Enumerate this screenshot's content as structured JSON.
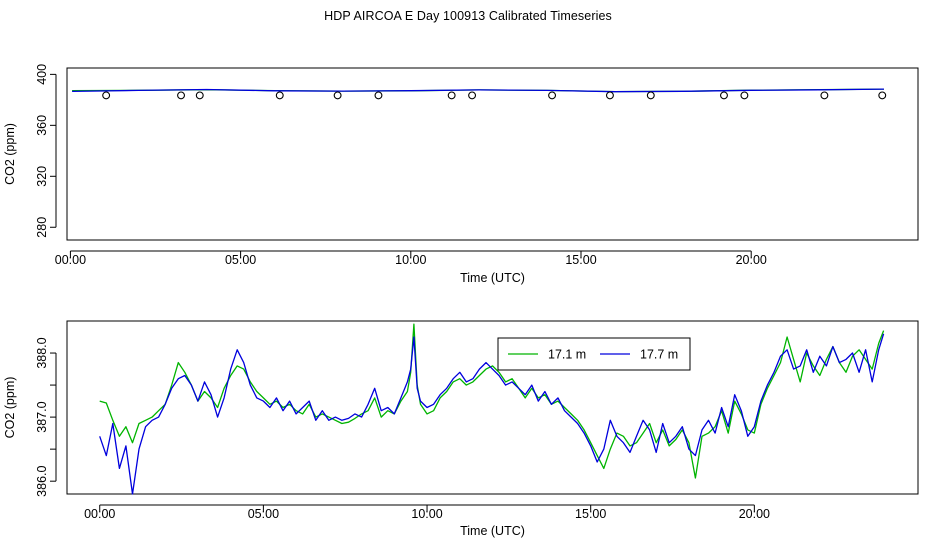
{
  "title": "HDP AIRCOA E  Day 100913  Calibrated Timeseries",
  "colors": {
    "green": "#00b400",
    "blue": "#0000dd",
    "axis": "#000000"
  },
  "chart_data": [
    {
      "type": "line",
      "xlabel": "Time (UTC)",
      "ylabel": "CO2 (ppm)",
      "xlim": [
        -0.1,
        24.9
      ],
      "ylim": [
        270,
        405
      ],
      "xticks": [
        0,
        5,
        10,
        15,
        20
      ],
      "xtick_labels": [
        "00:00",
        "05:00",
        "10:00",
        "15:00",
        "20:00"
      ],
      "yticks": [
        280,
        320,
        360,
        400
      ],
      "ytick_labels": [
        "280",
        "320",
        "360",
        "400"
      ],
      "grid": false,
      "series": [
        {
          "color": "green",
          "x": [
            0.05,
            2,
            4,
            6,
            8,
            10,
            12,
            14,
            16,
            18,
            20,
            22,
            23.9
          ],
          "y": [
            387.2,
            387.5,
            388.0,
            387.2,
            386.9,
            387.1,
            387.8,
            387.4,
            386.5,
            386.7,
            387.6,
            388.0,
            388.4
          ]
        },
        {
          "color": "blue",
          "x": [
            0.05,
            2,
            4,
            6,
            8,
            10,
            12,
            14,
            16,
            18,
            20,
            22,
            23.9
          ],
          "y": [
            386.6,
            387.4,
            388.1,
            387.1,
            386.9,
            387.2,
            387.8,
            387.4,
            386.4,
            386.7,
            387.5,
            387.9,
            388.4
          ]
        },
        {
          "name": "circles",
          "marker": "circle",
          "x": [
            1.05,
            3.25,
            3.8,
            6.15,
            7.85,
            9.05,
            11.2,
            11.8,
            14.15,
            15.85,
            17.05,
            19.2,
            19.8,
            22.15,
            23.85
          ],
          "y": [
            383.5,
            383.5,
            383.5,
            383.5,
            383.5,
            383.5,
            383.5,
            383.5,
            383.5,
            383.5,
            383.5,
            383.5,
            383.5,
            383.5,
            383.5
          ]
        }
      ]
    },
    {
      "type": "line",
      "xlabel": "Time (UTC)",
      "ylabel": "CO2 (ppm)",
      "xlim": [
        -1,
        25
      ],
      "ylim": [
        385.8,
        388.5
      ],
      "xticks": [
        0,
        5,
        10,
        15,
        20
      ],
      "xtick_labels": [
        "00:00",
        "05:00",
        "10:00",
        "15:00",
        "20:00"
      ],
      "yticks": [
        386.0,
        386.5,
        387.0,
        387.5,
        388.0
      ],
      "ytick_labels": [
        "386.0",
        "",
        "387.0",
        "",
        "388.0"
      ],
      "grid": false,
      "legend": {
        "placement": "top-center",
        "entries": [
          "17.1 m",
          "17.7 m"
        ]
      },
      "series": [
        {
          "name": "17.1 m",
          "color": "green",
          "x": [
            0.0,
            0.2,
            0.4,
            0.6,
            0.8,
            1.0,
            1.2,
            1.4,
            1.6,
            1.8,
            2.0,
            2.2,
            2.4,
            2.6,
            2.8,
            3.0,
            3.2,
            3.4,
            3.6,
            3.8,
            4.0,
            4.2,
            4.4,
            4.6,
            4.8,
            5.0,
            5.2,
            5.4,
            5.6,
            5.8,
            6.0,
            6.2,
            6.4,
            6.6,
            6.8,
            7.0,
            7.2,
            7.4,
            7.6,
            7.8,
            8.0,
            8.2,
            8.4,
            8.6,
            8.8,
            9.0,
            9.2,
            9.4,
            9.5,
            9.6,
            9.7,
            9.8,
            10.0,
            10.2,
            10.4,
            10.6,
            10.8,
            11.0,
            11.2,
            11.4,
            11.6,
            11.8,
            12.0,
            12.2,
            12.4,
            12.6,
            12.8,
            13.0,
            13.2,
            13.4,
            13.6,
            13.8,
            14.0,
            14.2,
            14.4,
            14.6,
            14.8,
            15.0,
            15.2,
            15.4,
            15.6,
            15.8,
            16.0,
            16.2,
            16.4,
            16.6,
            16.8,
            17.0,
            17.2,
            17.4,
            17.6,
            17.8,
            18.0,
            18.2,
            18.4,
            18.6,
            18.8,
            19.0,
            19.2,
            19.4,
            19.6,
            19.8,
            20.0,
            20.2,
            20.4,
            20.6,
            20.8,
            21.0,
            21.2,
            21.4,
            21.6,
            21.8,
            22.0,
            22.2,
            22.4,
            22.6,
            22.8,
            23.0,
            23.2,
            23.4,
            23.6,
            23.8,
            23.95
          ],
          "y": [
            387.25,
            387.22,
            386.95,
            386.7,
            386.85,
            386.6,
            386.9,
            386.95,
            387.0,
            387.1,
            387.2,
            387.5,
            387.85,
            387.7,
            387.5,
            387.25,
            387.4,
            387.3,
            387.15,
            387.45,
            387.65,
            387.8,
            387.75,
            387.55,
            387.4,
            387.3,
            387.2,
            387.25,
            387.15,
            387.2,
            387.1,
            387.05,
            387.2,
            387.0,
            387.05,
            387.0,
            386.95,
            386.9,
            386.92,
            386.98,
            387.05,
            387.1,
            387.3,
            387.0,
            387.1,
            387.05,
            387.25,
            387.4,
            387.7,
            388.45,
            387.5,
            387.2,
            387.05,
            387.1,
            387.3,
            387.4,
            387.55,
            387.6,
            387.5,
            387.55,
            387.65,
            387.75,
            387.8,
            387.7,
            387.55,
            387.6,
            387.45,
            387.3,
            387.45,
            387.3,
            387.35,
            387.2,
            387.25,
            387.15,
            387.05,
            386.95,
            386.8,
            386.6,
            386.4,
            386.2,
            386.5,
            386.75,
            386.7,
            386.55,
            386.6,
            386.75,
            386.9,
            386.6,
            386.8,
            386.55,
            386.65,
            386.8,
            386.6,
            386.05,
            386.7,
            386.75,
            386.85,
            387.1,
            386.75,
            387.25,
            387.05,
            386.8,
            386.75,
            387.2,
            387.45,
            387.65,
            387.85,
            388.25,
            387.9,
            387.55,
            388.0,
            387.8,
            387.65,
            387.9,
            388.1,
            387.85,
            387.7,
            387.95,
            388.05,
            387.9,
            387.75,
            388.15,
            388.35
          ]
        },
        {
          "name": "17.7 m",
          "color": "blue",
          "x": [
            0.0,
            0.2,
            0.4,
            0.6,
            0.8,
            1.0,
            1.2,
            1.4,
            1.6,
            1.8,
            2.0,
            2.2,
            2.4,
            2.6,
            2.8,
            3.0,
            3.2,
            3.4,
            3.6,
            3.8,
            4.0,
            4.2,
            4.4,
            4.6,
            4.8,
            5.0,
            5.2,
            5.4,
            5.6,
            5.8,
            6.0,
            6.2,
            6.4,
            6.6,
            6.8,
            7.0,
            7.2,
            7.4,
            7.6,
            7.8,
            8.0,
            8.2,
            8.4,
            8.6,
            8.8,
            9.0,
            9.2,
            9.4,
            9.5,
            9.6,
            9.7,
            9.8,
            10.0,
            10.2,
            10.4,
            10.6,
            10.8,
            11.0,
            11.2,
            11.4,
            11.6,
            11.8,
            12.0,
            12.2,
            12.4,
            12.6,
            12.8,
            13.0,
            13.2,
            13.4,
            13.6,
            13.8,
            14.0,
            14.2,
            14.4,
            14.6,
            14.8,
            15.0,
            15.2,
            15.4,
            15.6,
            15.8,
            16.0,
            16.2,
            16.4,
            16.6,
            16.8,
            17.0,
            17.2,
            17.4,
            17.6,
            17.8,
            18.0,
            18.2,
            18.4,
            18.6,
            18.8,
            19.0,
            19.2,
            19.4,
            19.6,
            19.8,
            20.0,
            20.2,
            20.4,
            20.6,
            20.8,
            21.0,
            21.2,
            21.4,
            21.6,
            21.8,
            22.0,
            22.2,
            22.4,
            22.6,
            22.8,
            23.0,
            23.2,
            23.4,
            23.6,
            23.8,
            23.95
          ],
          "y": [
            386.7,
            386.4,
            386.9,
            386.2,
            386.55,
            385.8,
            386.5,
            386.85,
            386.95,
            387.0,
            387.2,
            387.45,
            387.6,
            387.65,
            387.5,
            387.25,
            387.55,
            387.35,
            387.0,
            387.3,
            387.75,
            388.05,
            387.85,
            387.5,
            387.3,
            387.25,
            387.15,
            387.3,
            387.1,
            387.25,
            387.05,
            387.15,
            387.25,
            386.95,
            387.1,
            386.95,
            387.0,
            386.95,
            386.98,
            387.05,
            387.0,
            387.2,
            387.45,
            387.1,
            387.15,
            387.05,
            387.3,
            387.55,
            387.75,
            388.25,
            387.45,
            387.25,
            387.15,
            387.2,
            387.35,
            387.45,
            387.6,
            387.7,
            387.55,
            387.6,
            387.75,
            387.85,
            387.75,
            387.65,
            387.5,
            387.55,
            387.45,
            387.35,
            387.5,
            387.25,
            387.4,
            387.2,
            387.3,
            387.1,
            387.0,
            386.9,
            386.75,
            386.55,
            386.3,
            386.5,
            386.95,
            386.7,
            386.6,
            386.45,
            386.7,
            386.95,
            386.8,
            386.45,
            386.9,
            386.6,
            386.7,
            386.85,
            386.5,
            386.4,
            386.8,
            386.95,
            386.75,
            387.15,
            386.85,
            387.35,
            387.1,
            386.7,
            386.85,
            387.25,
            387.5,
            387.7,
            387.95,
            388.05,
            387.75,
            387.8,
            388.05,
            387.7,
            387.95,
            387.8,
            388.1,
            387.85,
            387.9,
            388.0,
            387.7,
            388.05,
            387.55,
            388.05,
            388.3
          ]
        }
      ]
    }
  ]
}
